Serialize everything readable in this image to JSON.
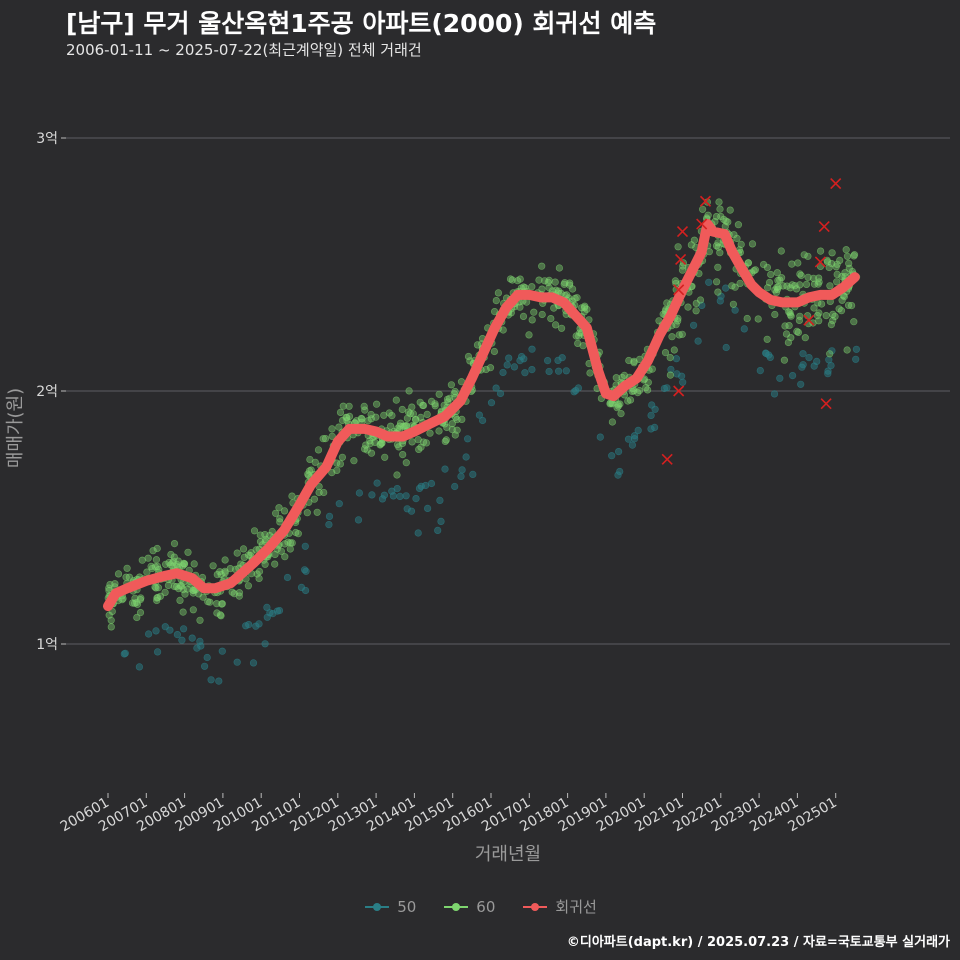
{
  "title": "[남구] 무거 울산옥현1주공 아파트(2000) 회귀선 예측",
  "subtitle": "2006-01-11 ~ 2025-07-22(최근계약일) 전체 거래건",
  "caption": "©디아파트(dapt.kr) / 2025.07.23 / 자료=국토교통부 실거래가",
  "colors": {
    "background": "#2b2b2d",
    "grid": "#5e5e62",
    "series_50": "#2a7e86",
    "series_60": "#7ed56f",
    "regression": "#f05a5a",
    "cancelled": "#d42020"
  },
  "legend": [
    {
      "key": "50",
      "label": "50",
      "color": "#2a7e86"
    },
    {
      "key": "60",
      "label": "60",
      "color": "#7ed56f"
    },
    {
      "key": "reg",
      "label": "회귀선",
      "color": "#f05a5a"
    }
  ],
  "chart_data": {
    "type": "scatter",
    "xlabel": "거래년월",
    "ylabel": "매매가(원)",
    "x_ticks": [
      "200601",
      "200701",
      "200801",
      "200901",
      "201001",
      "201101",
      "201201",
      "201301",
      "201401",
      "201501",
      "201601",
      "201701",
      "201801",
      "201901",
      "202001",
      "202101",
      "202201",
      "202301",
      "202401",
      "202501"
    ],
    "y_ticks": [
      {
        "value": 1.0,
        "label": "1억"
      },
      {
        "value": 2.0,
        "label": "2억"
      },
      {
        "value": 3.0,
        "label": "3억"
      }
    ],
    "xlim": [
      2005.75,
      2025.95
    ],
    "ylim": [
      0.4,
      3.6
    ],
    "y_unit": "억",
    "grid": "horizontal",
    "legend_position": "bottom",
    "regression": {
      "x": [
        2006.0,
        2006.2,
        2006.5,
        2007.0,
        2007.5,
        2007.8,
        2008.2,
        2008.5,
        2008.8,
        2009.2,
        2009.5,
        2009.8,
        2010.2,
        2010.6,
        2011.0,
        2011.3,
        2011.7,
        2012.0,
        2012.3,
        2012.7,
        2013.0,
        2013.3,
        2013.7,
        2014.0,
        2014.4,
        2014.8,
        2015.2,
        2015.5,
        2015.8,
        2016.1,
        2016.4,
        2016.7,
        2017.0,
        2017.3,
        2017.6,
        2017.9,
        2018.2,
        2018.5,
        2018.8,
        2019.0,
        2019.2,
        2019.5,
        2019.8,
        2020.1,
        2020.4,
        2020.7,
        2021.0,
        2021.3,
        2021.5,
        2021.65,
        2021.8,
        2022.1,
        2022.3,
        2022.6,
        2022.8,
        2023.0,
        2023.3,
        2023.6,
        2024.0,
        2024.3,
        2024.6,
        2024.9,
        2025.2,
        2025.5
      ],
      "y": [
        1.15,
        1.2,
        1.22,
        1.25,
        1.27,
        1.28,
        1.26,
        1.22,
        1.22,
        1.24,
        1.28,
        1.32,
        1.38,
        1.45,
        1.55,
        1.63,
        1.7,
        1.8,
        1.85,
        1.85,
        1.84,
        1.82,
        1.82,
        1.84,
        1.87,
        1.9,
        1.96,
        2.05,
        2.15,
        2.25,
        2.33,
        2.38,
        2.38,
        2.37,
        2.37,
        2.35,
        2.3,
        2.25,
        2.08,
        1.99,
        1.98,
        2.02,
        2.05,
        2.12,
        2.22,
        2.3,
        2.4,
        2.49,
        2.55,
        2.66,
        2.63,
        2.62,
        2.55,
        2.47,
        2.42,
        2.39,
        2.36,
        2.35,
        2.35,
        2.37,
        2.38,
        2.38,
        2.41,
        2.45
      ]
    },
    "series": [
      {
        "name": "50",
        "color": "#2a7e86"
      },
      {
        "name": "60",
        "color": "#7ed56f"
      }
    ],
    "cancelled_points": {
      "x": [
        2020.6,
        2020.9,
        2020.9,
        2020.95,
        2021.0,
        2021.5,
        2021.6,
        2024.3,
        2024.6,
        2024.7,
        2024.75,
        2025.0
      ],
      "y": [
        1.73,
        2.0,
        2.4,
        2.52,
        2.63,
        2.66,
        2.75,
        2.28,
        2.51,
        2.65,
        1.95,
        2.82
      ]
    }
  }
}
